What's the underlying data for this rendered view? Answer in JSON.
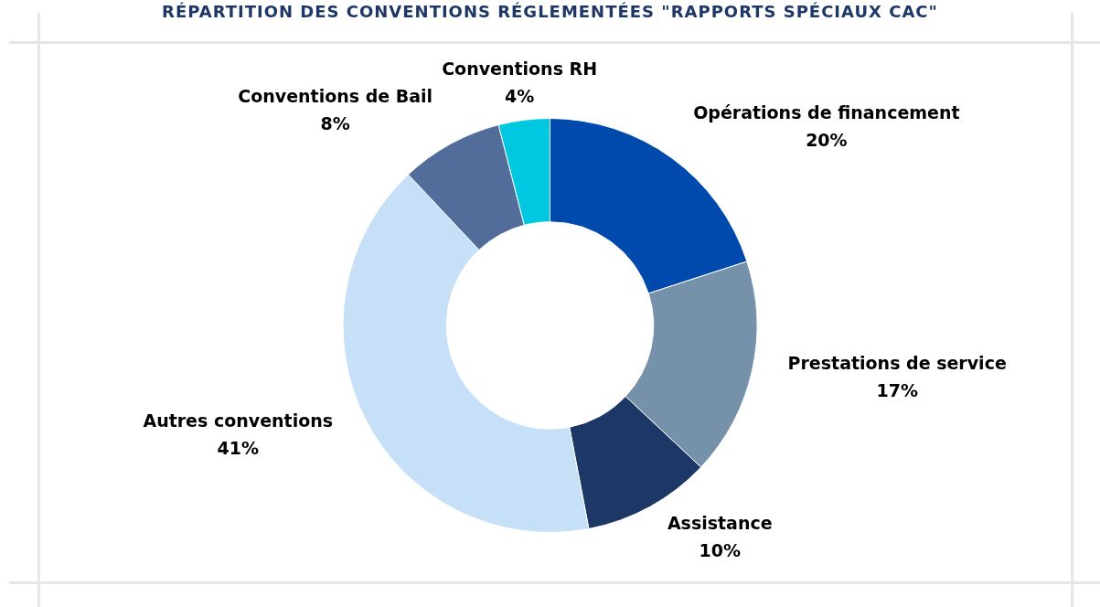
{
  "chart_data": {
    "type": "donut",
    "title": "RÉPARTITION DES CONVENTIONS RÉGLEMENTÉES \"RAPPORTS SPÉCIAUX CAC\"",
    "categories": [
      "Opérations de financement",
      "Prestations de service",
      "Assistance",
      "Autres conventions",
      "Conventions de Bail",
      "Conventions RH"
    ],
    "values": [
      20,
      17,
      10,
      41,
      8,
      4
    ],
    "value_labels": [
      "20%",
      "17%",
      "10%",
      "41%",
      "8%",
      "4%"
    ],
    "colors": [
      "#004aad",
      "#7692ab",
      "#1d3767",
      "#c5e0f7",
      "#536d9b",
      "#00c8e0"
    ],
    "legend": false
  }
}
